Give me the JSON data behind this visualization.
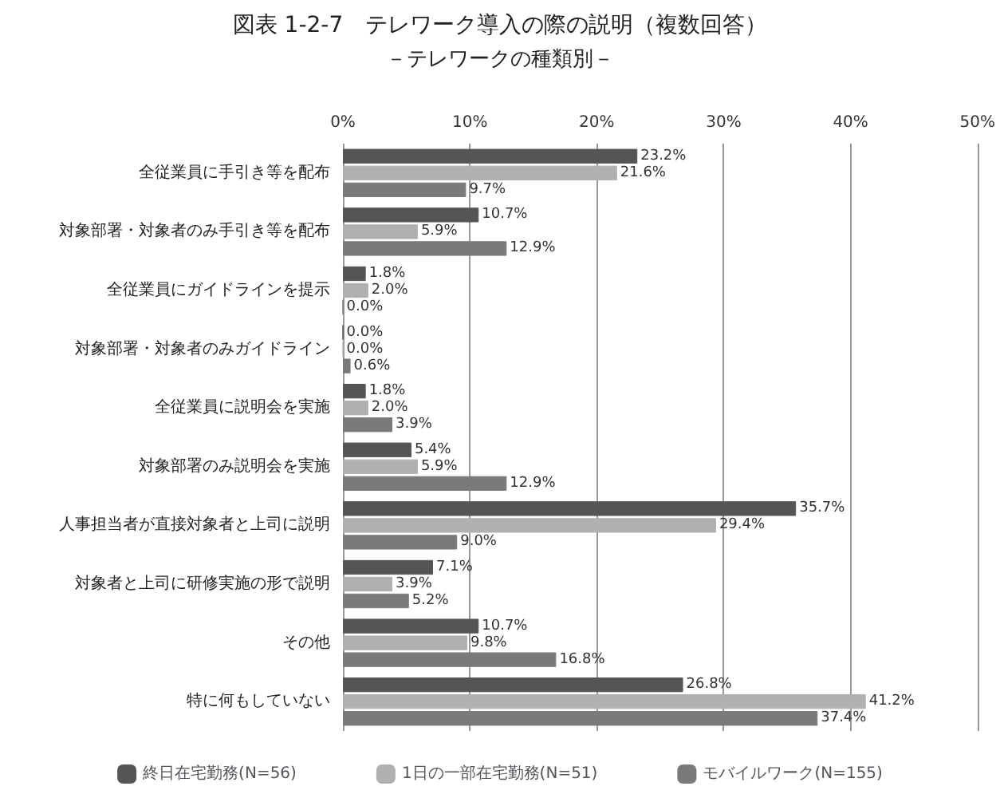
{
  "chart_data": {
    "type": "bar",
    "orientation": "horizontal",
    "title": "図表 1-2-7　テレワーク導入の際の説明（複数回答）",
    "subtitle": "－テレワークの種類別－",
    "categories": [
      "全従業員に手引き等を配布",
      "対象部署・対象者のみ手引き等を配布",
      "全従業員にガイドラインを提示",
      "対象部署・対象者のみガイドライン",
      "全従業員に説明会を実施",
      "対象部署のみ説明会を実施",
      "人事担当者が直接対象者と上司に説明",
      "対象者と上司に研修実施の形で説明",
      "その他",
      "特に何もしていない"
    ],
    "series": [
      {
        "name": "終日在宅勤務(N=56)",
        "color": "#555555",
        "values": [
          23.2,
          10.7,
          1.8,
          0.0,
          1.8,
          5.4,
          35.7,
          7.1,
          10.7,
          26.8
        ],
        "value_labels": [
          "23.2%",
          "10.7%",
          "1.8%",
          "0.0%",
          "1.8%",
          "5.4%",
          "35.7%",
          "7.1%",
          "10.7%",
          "26.8%"
        ]
      },
      {
        "name": "1日の一部在宅勤務(N=51)",
        "color": "#b0b0b0",
        "values": [
          21.6,
          5.9,
          2.0,
          0.0,
          2.0,
          5.9,
          29.4,
          3.9,
          9.8,
          41.2
        ],
        "value_labels": [
          "21.6%",
          "5.9%",
          "2.0%",
          "0.0%",
          "2.0%",
          "5.9%",
          "29.4%",
          "3.9%",
          "9.8%",
          "41.2%"
        ]
      },
      {
        "name": "モバイルワーク(N=155)",
        "color": "#7a7a7a",
        "values": [
          9.7,
          12.9,
          0.0,
          0.6,
          3.9,
          12.9,
          9.0,
          5.2,
          16.8,
          37.4
        ],
        "value_labels": [
          "9.7%",
          "12.9%",
          "0.0%",
          "0.6%",
          "3.9%",
          "12.9%",
          "9.0%",
          "5.2%",
          "16.8%",
          "37.4%"
        ]
      }
    ],
    "xlim": [
      0,
      50
    ],
    "xticks": [
      {
        "value": 0,
        "label": "0%"
      },
      {
        "value": 10,
        "label": "10%"
      },
      {
        "value": 20,
        "label": "20%"
      },
      {
        "value": 30,
        "label": "30%"
      },
      {
        "value": 40,
        "label": "40%"
      },
      {
        "value": 50,
        "label": "50%"
      }
    ],
    "grid": "x",
    "legend": "bottom"
  }
}
